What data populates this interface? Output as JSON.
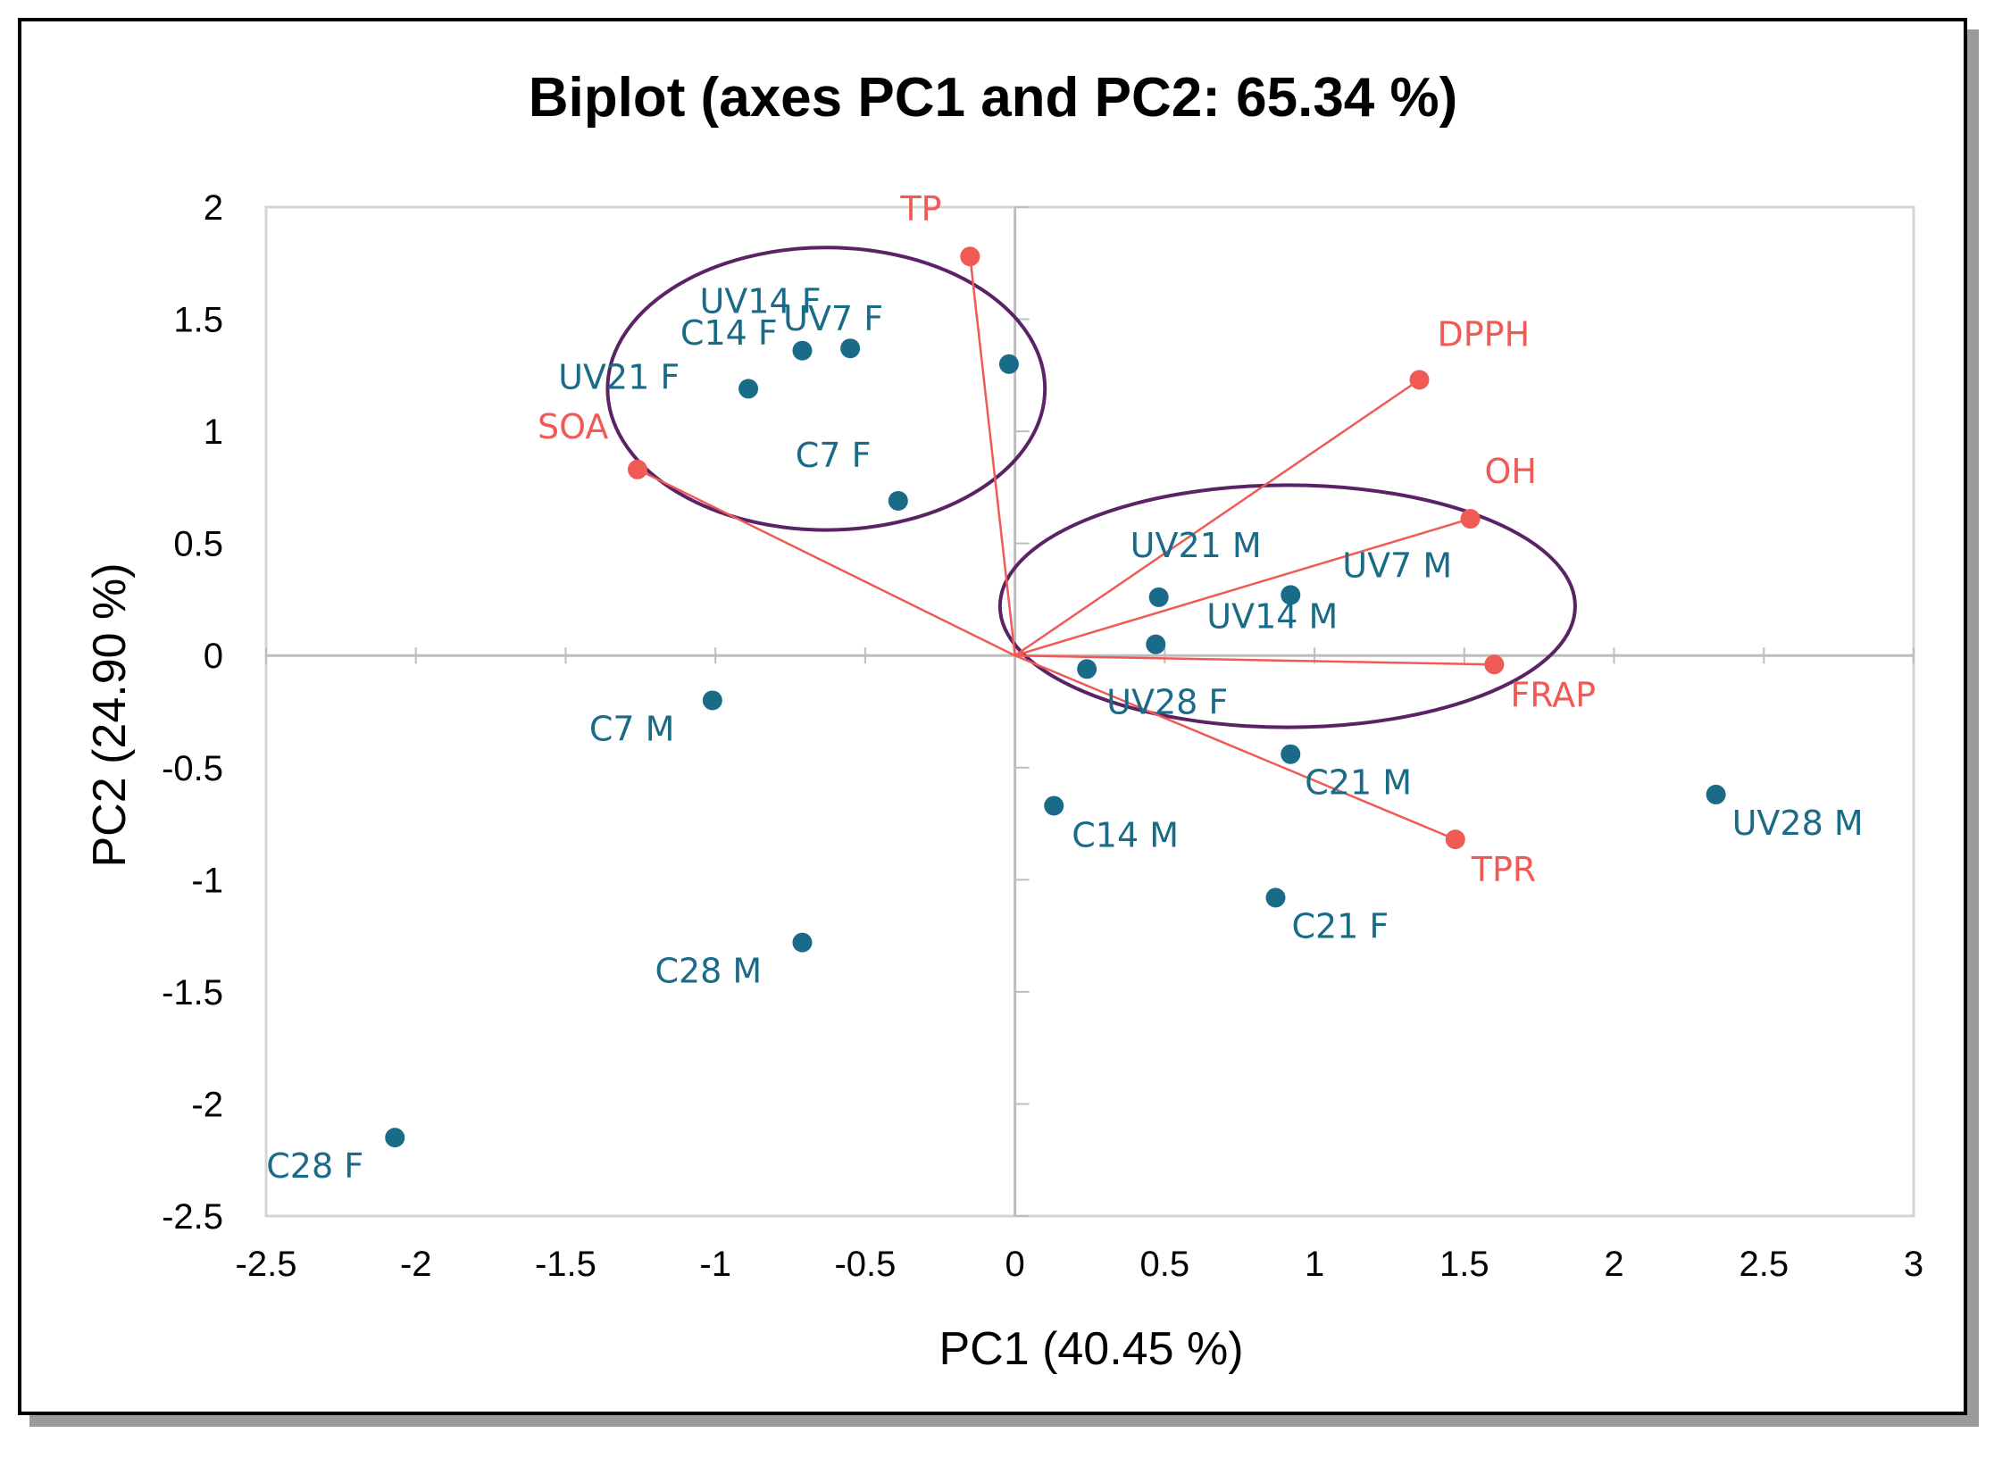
{
  "chart_data": {
    "type": "scatter",
    "subtype": "biplot",
    "title": "Biplot (axes PC1 and PC2: 65.34 %)",
    "xlabel": "PC1 (40.45 %)",
    "ylabel": "PC2 (24.90 %)",
    "xlim": [
      -2.5,
      3
    ],
    "ylim": [
      -2.5,
      2
    ],
    "xticks": [
      "-2.5",
      "-2",
      "-1.5",
      "-1",
      "-0.5",
      "0",
      "0.5",
      "1",
      "1.5",
      "2",
      "2.5",
      "3"
    ],
    "yticks": [
      "2",
      "1.5",
      "1",
      "0.5",
      "0",
      "-0.5",
      "-1",
      "-1.5",
      "-2",
      "-2.5"
    ],
    "grid": false,
    "colors": {
      "observations": "#1a6b87",
      "variables": "#f05a55",
      "ellipses": "#5b2266",
      "axes": "#bdbdbd"
    },
    "observations": [
      {
        "label": "UV14 F",
        "x": -0.71,
        "y": 1.36
      },
      {
        "label": "UV7 F",
        "x": -0.55,
        "y": 1.37
      },
      {
        "label": "C14 F",
        "x": -0.02,
        "y": 1.3
      },
      {
        "label": "UV21 F",
        "x": -0.89,
        "y": 1.19
      },
      {
        "label": "C7 F",
        "x": -0.39,
        "y": 0.69
      },
      {
        "label": "UV21 M",
        "x": 0.48,
        "y": 0.26
      },
      {
        "label": "UV7 M",
        "x": 0.92,
        "y": 0.27
      },
      {
        "label": "UV14 M",
        "x": 0.47,
        "y": 0.05
      },
      {
        "label": "UV28 F",
        "x": 0.24,
        "y": -0.06
      },
      {
        "label": "C7 M",
        "x": -1.01,
        "y": -0.2
      },
      {
        "label": "C21 M",
        "x": 0.92,
        "y": -0.44
      },
      {
        "label": "C14 M",
        "x": 0.13,
        "y": -0.67
      },
      {
        "label": "UV28 M",
        "x": 2.34,
        "y": -0.62
      },
      {
        "label": "C21 F",
        "x": 0.87,
        "y": -1.08
      },
      {
        "label": "C28 M",
        "x": -0.71,
        "y": -1.28
      },
      {
        "label": "C28 F",
        "x": -2.07,
        "y": -2.15
      }
    ],
    "variables": [
      {
        "label": "TP",
        "x": -0.15,
        "y": 1.78
      },
      {
        "label": "DPPH",
        "x": 1.35,
        "y": 1.23
      },
      {
        "label": "OH",
        "x": 1.52,
        "y": 0.61
      },
      {
        "label": "SOA",
        "x": -1.26,
        "y": 0.83
      },
      {
        "label": "FRAP",
        "x": 1.6,
        "y": -0.04
      },
      {
        "label": "TPR",
        "x": 1.47,
        "y": -0.82
      }
    ],
    "ellipses": [
      {
        "group": "F",
        "cx": -0.63,
        "cy": 1.19,
        "rx": 0.73,
        "ry": 0.63
      },
      {
        "group": "M",
        "cx": 0.91,
        "cy": 0.22,
        "rx": 0.96,
        "ry": 0.54
      }
    ]
  }
}
